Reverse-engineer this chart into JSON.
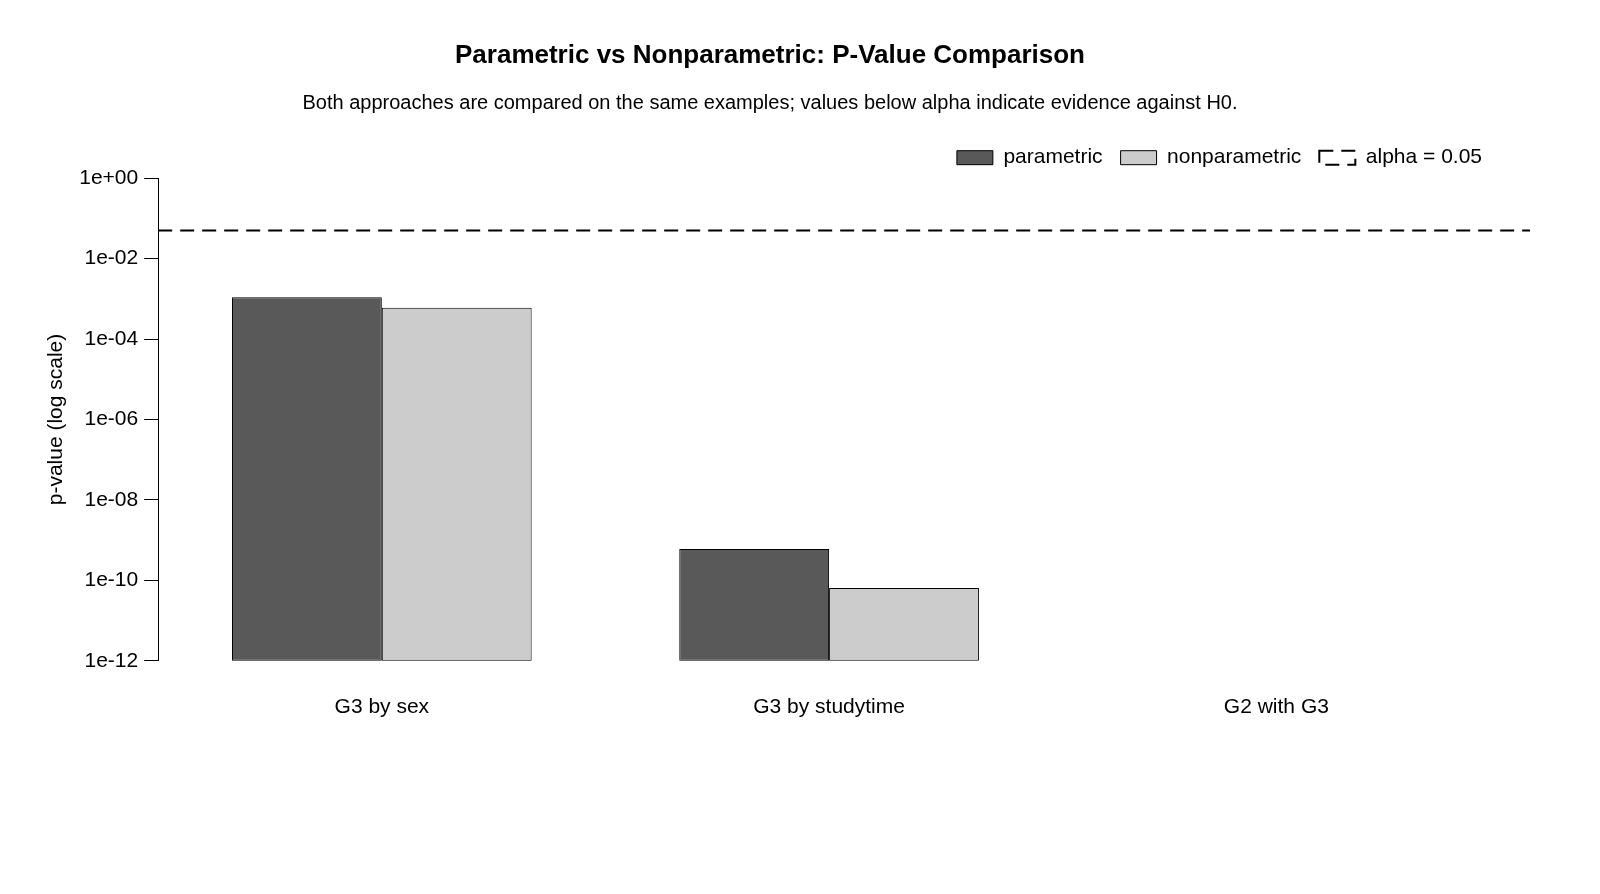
{
  "chart_data": {
    "type": "bar",
    "title": "Parametric vs Nonparametric: P-Value Comparison",
    "subtitle": "Both approaches are compared on the same examples; values below alpha indicate evidence against H0.",
    "ylabel": "p-value (log scale)",
    "categories": [
      "G3 by sex",
      "G3 by studytime",
      "G2 with G3"
    ],
    "series": [
      {
        "name": "parametric",
        "color": "#595959",
        "values": [
          0.0011,
          6e-10,
          1e-12
        ]
      },
      {
        "name": "nonparametric",
        "color": "#cccccc",
        "values": [
          0.0006,
          6.5e-11,
          1e-12
        ]
      }
    ],
    "log": "y",
    "ylim": [
      1e-12,
      1
    ],
    "yticks": [
      {
        "value": 1e-12,
        "label": "1e-12"
      },
      {
        "value": 1e-10,
        "label": "1e-10"
      },
      {
        "value": 1e-08,
        "label": "1e-08"
      },
      {
        "value": 1e-06,
        "label": "1e-06"
      },
      {
        "value": 0.0001,
        "label": "1e-04"
      },
      {
        "value": 0.01,
        "label": "1e-02"
      },
      {
        "value": 1,
        "label": "1e+00"
      }
    ],
    "ref_lines": [
      {
        "axis": "y",
        "value": 0.05,
        "label": "alpha = 0.05",
        "color": "#000000",
        "line_style": "dashed"
      }
    ],
    "legend": "top right",
    "grid": false
  }
}
